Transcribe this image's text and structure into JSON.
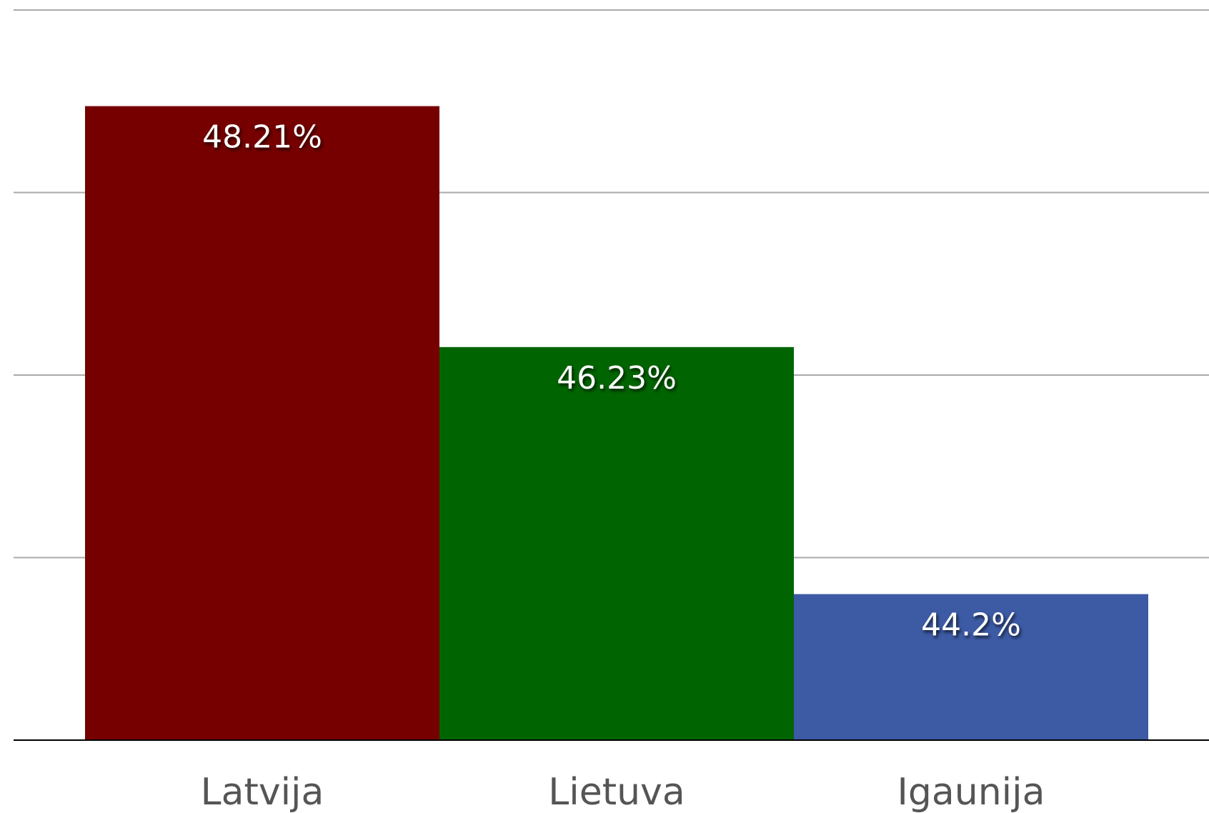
{
  "chart_data": {
    "type": "bar",
    "categories": [
      "Latvija",
      "Lietuva",
      "Igaunija"
    ],
    "values": [
      48.21,
      46.23,
      44.2
    ],
    "value_labels": [
      "48.21%",
      "46.23%",
      "44.2%"
    ],
    "colors": [
      "#760000",
      "#006400",
      "#3d5aa5"
    ],
    "ylim": [
      43,
      49
    ],
    "yticks": [
      43,
      44.5,
      46,
      47.5,
      49
    ],
    "grid": true
  }
}
